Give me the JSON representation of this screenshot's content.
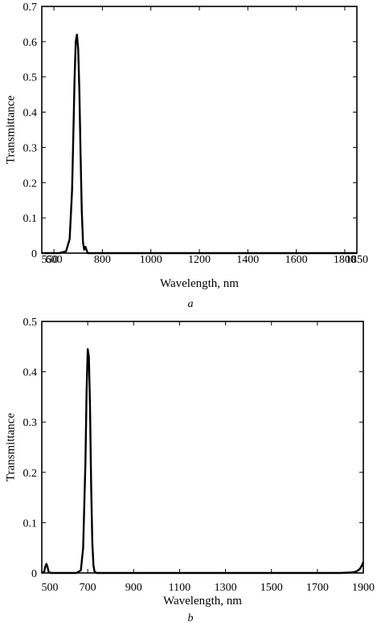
{
  "chart_data": [
    {
      "type": "line",
      "panel_label": "a",
      "xlabel": "Wavelength, nm",
      "ylabel": "Transmittance",
      "xlim": [
        550,
        1850
      ],
      "ylim": [
        0,
        0.7
      ],
      "x_ticks": [
        550,
        600,
        800,
        1000,
        1200,
        1400,
        1600,
        1800,
        1850
      ],
      "x_tick_labels": [
        "550",
        "600",
        "800",
        "1000",
        "1200",
        "1400",
        "1600",
        "1800",
        "1850"
      ],
      "y_ticks": [
        0,
        0.1,
        0.2,
        0.3,
        0.4,
        0.5,
        0.6,
        0.7
      ],
      "y_tick_labels": [
        "0",
        "0.1",
        "0.2",
        "0.3",
        "0.4",
        "0.5",
        "0.6",
        "0.7"
      ],
      "series": [
        {
          "x": [
            550,
            620,
            650,
            665,
            675,
            680,
            685,
            690,
            695,
            700,
            705,
            710,
            715,
            720,
            725,
            730,
            735,
            740,
            750,
            800,
            1850
          ],
          "y": [
            0,
            0,
            0.005,
            0.04,
            0.18,
            0.33,
            0.49,
            0.6,
            0.62,
            0.58,
            0.46,
            0.28,
            0.12,
            0.03,
            0.01,
            0.018,
            0.008,
            0,
            0,
            0,
            0
          ]
        }
      ]
    },
    {
      "type": "line",
      "panel_label": "b",
      "xlabel": "Wavelength, nm",
      "ylabel": "Transmittance",
      "xlim": [
        500,
        1900
      ],
      "ylim": [
        0,
        0.5
      ],
      "x_ticks": [
        500,
        700,
        900,
        1100,
        1300,
        1500,
        1700,
        1900
      ],
      "x_tick_labels": [
        "500",
        "700",
        "900",
        "1100",
        "1300",
        "1500",
        "1700",
        "1900"
      ],
      "y_ticks": [
        0,
        0.1,
        0.2,
        0.3,
        0.4,
        0.5
      ],
      "y_tick_labels": [
        "0",
        "0.1",
        "0.2",
        "0.3",
        "0.4",
        "0.5"
      ],
      "series": [
        {
          "x": [
            500,
            510,
            515,
            520,
            525,
            530,
            540,
            650,
            670,
            680,
            690,
            695,
            700,
            705,
            710,
            715,
            720,
            725,
            730,
            740,
            760,
            1600,
            1800,
            1850,
            1870,
            1885,
            1895,
            1900
          ],
          "y": [
            0,
            0.002,
            0.012,
            0.018,
            0.012,
            0.002,
            0,
            0,
            0.005,
            0.05,
            0.22,
            0.36,
            0.445,
            0.43,
            0.33,
            0.17,
            0.06,
            0.015,
            0.002,
            0,
            0,
            0,
            0,
            0.001,
            0.003,
            0.008,
            0.016,
            0.022
          ]
        }
      ]
    }
  ]
}
